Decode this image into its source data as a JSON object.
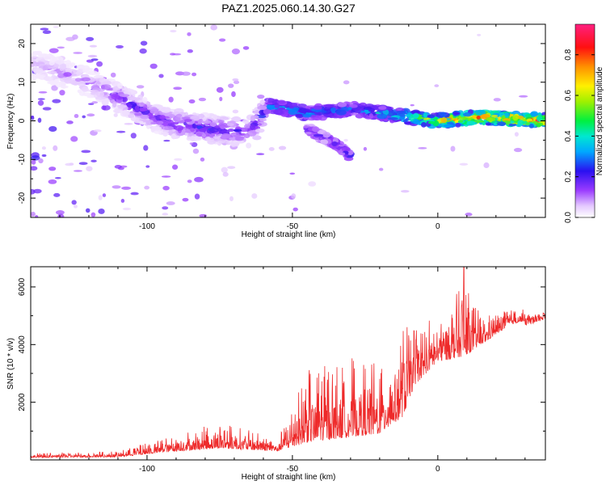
{
  "title": "PAZ1.2025.060.14.30.G27",
  "chart_data": [
    {
      "type": "heatmap",
      "xlabel": "Height of straight line (km)",
      "ylabel": "Frequency (Hz)",
      "xlim": [
        -140,
        37
      ],
      "ylim": [
        -25,
        25
      ],
      "xticks": [
        -100,
        -50,
        0
      ],
      "yticks": [
        -20,
        -10,
        0,
        10,
        20
      ],
      "colorbar": {
        "label": "Normalized spectral amplitude",
        "range": [
          0,
          0.95
        ],
        "ticks": [
          0.0,
          0.2,
          0.4,
          0.6,
          0.8
        ]
      },
      "ridge": [
        {
          "x": -140,
          "f": 15,
          "amp": 0.08
        },
        {
          "x": -120,
          "f": 10,
          "amp": 0.12
        },
        {
          "x": -105,
          "f": 4,
          "amp": 0.2
        },
        {
          "x": -95,
          "f": 0,
          "amp": 0.2
        },
        {
          "x": -80,
          "f": -2,
          "amp": 0.25
        },
        {
          "x": -65,
          "f": -3,
          "amp": 0.22
        },
        {
          "x": -58,
          "f": 4,
          "amp": 0.3
        },
        {
          "x": -45,
          "f": 2,
          "amp": 0.35
        },
        {
          "x": -30,
          "f": 3,
          "amp": 0.3
        },
        {
          "x": -20,
          "f": 2,
          "amp": 0.35
        },
        {
          "x": -10,
          "f": 1,
          "amp": 0.5
        },
        {
          "x": 0,
          "f": 0,
          "amp": 0.7
        },
        {
          "x": 15,
          "f": 1,
          "amp": 0.8
        },
        {
          "x": 37,
          "f": 0,
          "amp": 0.85
        }
      ],
      "branch": [
        {
          "x": -45,
          "f": -2,
          "amp": 0.2
        },
        {
          "x": -35,
          "f": -6,
          "amp": 0.22
        },
        {
          "x": -30,
          "f": -9,
          "amp": 0.25
        }
      ]
    },
    {
      "type": "line",
      "xlabel": "Height of straight line (km)",
      "ylabel": "SNR (10 * v/v)",
      "xlim": [
        -140,
        37
      ],
      "ylim": [
        0,
        6700
      ],
      "xticks": [
        -100,
        -50,
        0
      ],
      "yticks": [
        2000,
        4000,
        6000
      ],
      "line_color": "#ee2a2a",
      "envelope": [
        {
          "x": -140,
          "base": 80,
          "spread": 150
        },
        {
          "x": -110,
          "base": 100,
          "spread": 200
        },
        {
          "x": -90,
          "base": 300,
          "spread": 600
        },
        {
          "x": -75,
          "base": 400,
          "spread": 900
        },
        {
          "x": -65,
          "base": 350,
          "spread": 700
        },
        {
          "x": -55,
          "base": 300,
          "spread": 400
        },
        {
          "x": -45,
          "base": 600,
          "spread": 2500
        },
        {
          "x": -30,
          "base": 800,
          "spread": 2800
        },
        {
          "x": -20,
          "base": 900,
          "spread": 2500
        },
        {
          "x": -12,
          "base": 1500,
          "spread": 3200
        },
        {
          "x": -8,
          "base": 2600,
          "spread": 2200
        },
        {
          "x": 0,
          "base": 3400,
          "spread": 1600
        },
        {
          "x": 9,
          "base": 3600,
          "spread": 2500
        },
        {
          "x": 15,
          "base": 4000,
          "spread": 1000
        },
        {
          "x": 25,
          "base": 4700,
          "spread": 500
        },
        {
          "x": 37,
          "base": 5000,
          "spread": 250
        }
      ],
      "peak": {
        "x": 9,
        "y": 6700
      }
    }
  ]
}
